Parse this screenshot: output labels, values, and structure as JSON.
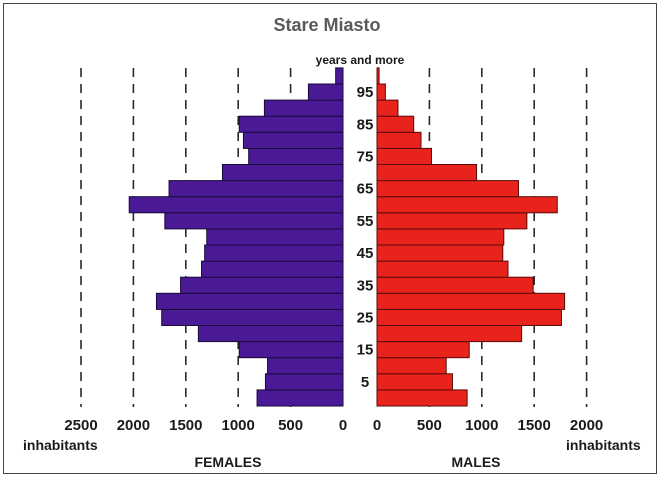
{
  "chart_data": {
    "type": "bar",
    "orientation": "horizontal-population-pyramid",
    "title": "Stare Miasto",
    "age_axis_top_label": "years and more",
    "age_tick_labels": [
      "5",
      "15",
      "25",
      "35",
      "45",
      "55",
      "65",
      "75",
      "85",
      "95"
    ],
    "age_groups": [
      "0",
      "5",
      "10",
      "15",
      "20",
      "25",
      "30",
      "35",
      "40",
      "45",
      "50",
      "55",
      "60",
      "65",
      "70",
      "75",
      "80",
      "85",
      "90",
      "95",
      "100"
    ],
    "series": [
      {
        "name": "FEMALES",
        "color": "#4a1a96",
        "values": [
          820,
          740,
          720,
          990,
          1380,
          1730,
          1780,
          1550,
          1350,
          1320,
          1300,
          1700,
          2040,
          1660,
          1150,
          900,
          950,
          990,
          750,
          330,
          70
        ]
      },
      {
        "name": "MALES",
        "color": "#e8231c",
        "values": [
          860,
          720,
          660,
          880,
          1380,
          1760,
          1790,
          1490,
          1250,
          1200,
          1210,
          1430,
          1720,
          1350,
          950,
          520,
          420,
          350,
          200,
          80,
          20
        ]
      }
    ],
    "females_axis": {
      "ticks": [
        "2500",
        "2000",
        "1500",
        "1000",
        "500",
        "0"
      ],
      "xlim": [
        2500,
        0
      ]
    },
    "males_axis": {
      "ticks": [
        "0",
        "500",
        "1000",
        "1500",
        "2000"
      ],
      "xlim": [
        0,
        2000
      ]
    },
    "x_unit_label": "inhabitants",
    "females_label": "FEMALES",
    "males_label": "MALES",
    "grid": "vertical dashed"
  }
}
